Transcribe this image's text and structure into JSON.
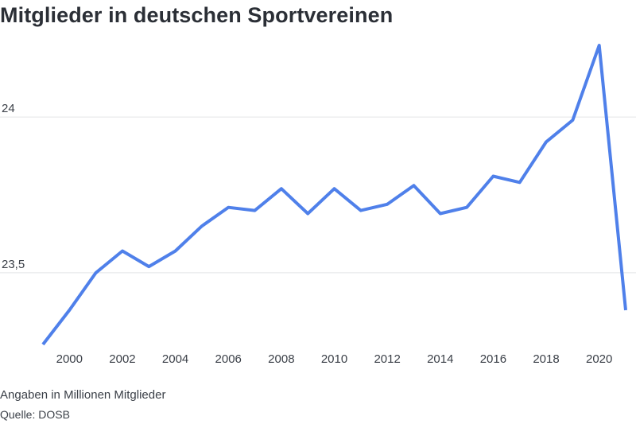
{
  "chart_data": {
    "type": "line",
    "title": "Mitglieder in deutschen Sportvereinen",
    "xlabel": "",
    "ylabel": "",
    "x": [
      1999,
      2000,
      2001,
      2002,
      2003,
      2004,
      2005,
      2006,
      2007,
      2008,
      2009,
      2010,
      2011,
      2012,
      2013,
      2014,
      2015,
      2016,
      2017,
      2018,
      2019,
      2020,
      2021
    ],
    "series": [
      {
        "values": [
          23.27,
          23.38,
          23.5,
          23.57,
          23.52,
          23.57,
          23.65,
          23.71,
          23.7,
          23.77,
          23.69,
          23.77,
          23.7,
          23.72,
          23.78,
          23.69,
          23.71,
          23.81,
          23.79,
          23.92,
          23.99,
          24.23,
          23.38
        ]
      }
    ],
    "xticks": [
      2000,
      2002,
      2004,
      2006,
      2008,
      2010,
      2012,
      2014,
      2016,
      2018,
      2020
    ],
    "yticks": [
      {
        "value": 23.5,
        "label": "23,5"
      },
      {
        "value": 24,
        "label": "24"
      }
    ],
    "xlim": [
      1999,
      2021
    ],
    "ylim": [
      23.27,
      24.23
    ],
    "grid": "horizontal",
    "colors": {
      "line": "#4f80ea",
      "grid": "#e3e5e8"
    },
    "note": "Angaben in Millionen Mitglieder",
    "source": "Quelle: DOSB"
  }
}
